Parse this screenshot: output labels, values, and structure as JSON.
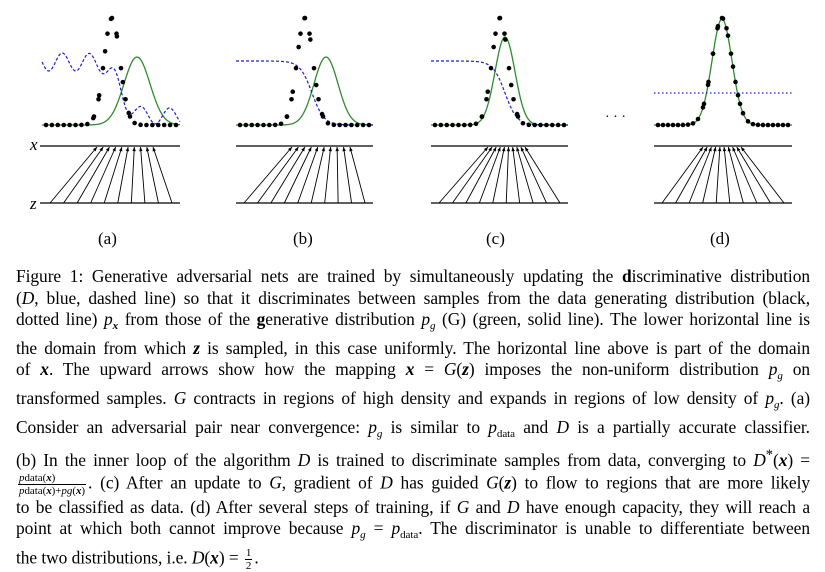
{
  "figure": {
    "panel_labels": [
      "(a)",
      "(b)",
      "(c)",
      "(d)"
    ],
    "axis_labels": {
      "x": "x",
      "z": "z"
    },
    "ellipsis": "· · ·",
    "colors": {
      "data": "#000000",
      "discriminator": "#1f1fcf",
      "generator": "#2e8b2e",
      "axis": "#000000"
    }
  },
  "caption": {
    "lines": [
      "Figure 1: Generative adversarial nets are trained by simultaneously updating the discriminative distribution",
      "(D, blue, dashed line) so that it discriminates between samples from the data generating distribution (black,",
      "dotted line) p_x from those of the generative distribution p_g (G) (green, solid line). The lower horizontal line is",
      "the domain from which z is sampled, in this case uniformly. The horizontal line above is part of the domain",
      "of x. The upward arrows show how the mapping x = G(z) imposes the non-uniform distribution p_g on",
      "transformed samples. G contracts in regions of high density and expands in regions of low density of p_g. (a)",
      "Consider an adversarial pair near convergence: p_g is similar to p_data and D is a partially accurate classifier.",
      "(b) In the inner loop of the algorithm D is trained to discriminate samples from data, converging to D*(x) =",
      "p_data(x) / (p_data(x)+p_g(x)). (c) After an update to G, gradient of D has guided G(z) to flow to regions that are more likely",
      "to be classified as data. (d) After several steps of training, if G and D have enough capacity, they will reach a",
      "point at which both cannot improve because p_g = p_data. The discriminator is unable to differentiate between",
      "the two distributions, i.e. D(x) = 1/2."
    ]
  }
}
